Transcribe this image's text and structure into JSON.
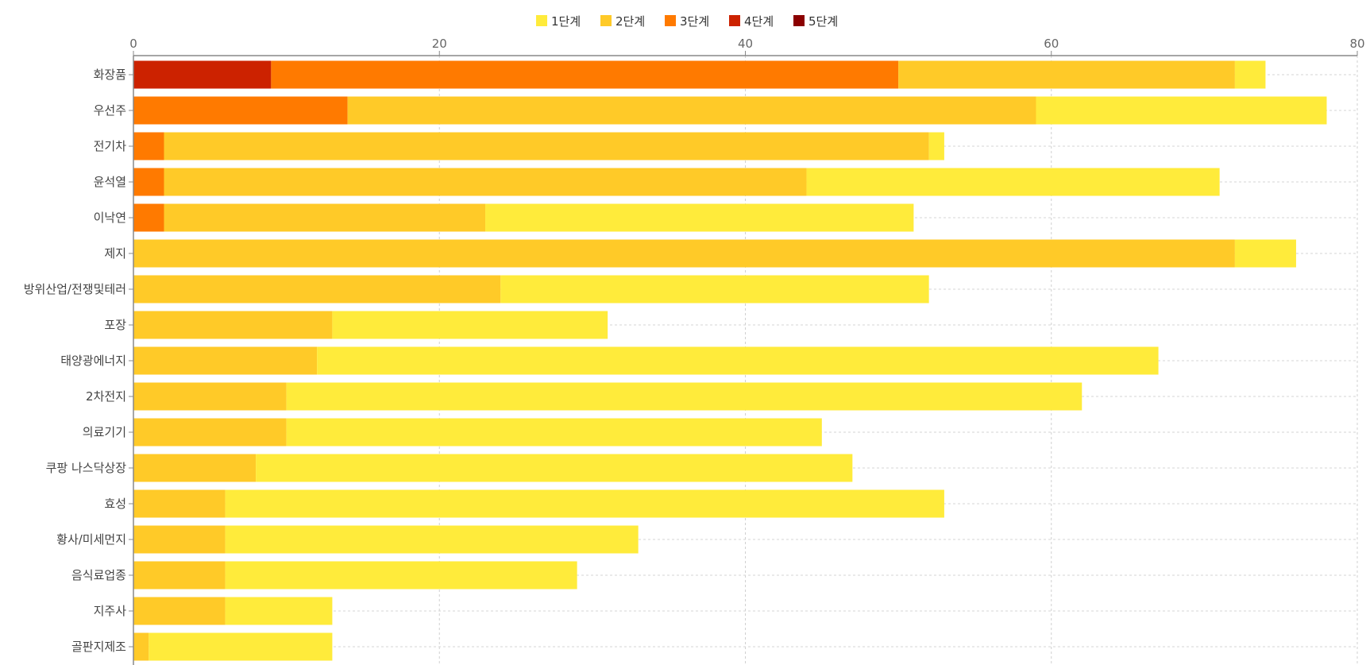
{
  "chart_data": {
    "type": "bar",
    "orientation": "horizontal",
    "stacked": true,
    "categories": [
      "화장품",
      "우선주",
      "전기차",
      "윤석열",
      "이낙연",
      "제지",
      "방위산업/전쟁및테러",
      "포장",
      "태양광에너지",
      "2차전지",
      "의료기기",
      "쿠팡 나스닥상장",
      "효성",
      "황사/미세먼지",
      "음식료업종",
      "지주사",
      "골판지제조"
    ],
    "series": [
      {
        "name": "1단계",
        "color": "#FFEB3B",
        "values": [
          2,
          19,
          1,
          27,
          28,
          4,
          28,
          18,
          55,
          52,
          35,
          39,
          47,
          27,
          23,
          7,
          12
        ]
      },
      {
        "name": "2단계",
        "color": "#FFCA28",
        "values": [
          22,
          45,
          50,
          42,
          21,
          72,
          24,
          13,
          12,
          10,
          10,
          8,
          6,
          6,
          6,
          6,
          1
        ]
      },
      {
        "name": "3단계",
        "color": "#FF7A00",
        "values": [
          41,
          14,
          2,
          2,
          2,
          0,
          0,
          0,
          0,
          0,
          0,
          0,
          0,
          0,
          0,
          0,
          0
        ]
      },
      {
        "name": "4단계",
        "color": "#CC2200",
        "values": [
          9,
          0,
          0,
          0,
          0,
          0,
          0,
          0,
          0,
          0,
          0,
          0,
          0,
          0,
          0,
          0,
          0
        ]
      },
      {
        "name": "5단계",
        "color": "#8B0000",
        "values": [
          0,
          0,
          0,
          0,
          0,
          0,
          0,
          0,
          0,
          0,
          0,
          0,
          0,
          0,
          0,
          0,
          0
        ]
      }
    ],
    "stack_order": [
      "5단계",
      "4단계",
      "3단계",
      "2단계",
      "1단계"
    ],
    "x_ticks": [
      0,
      20,
      40,
      60,
      80
    ],
    "xlim": [
      0,
      80
    ],
    "x_axis_position": "top",
    "legend_position": "top",
    "grid": true,
    "title": "",
    "xlabel": "",
    "ylabel": ""
  }
}
